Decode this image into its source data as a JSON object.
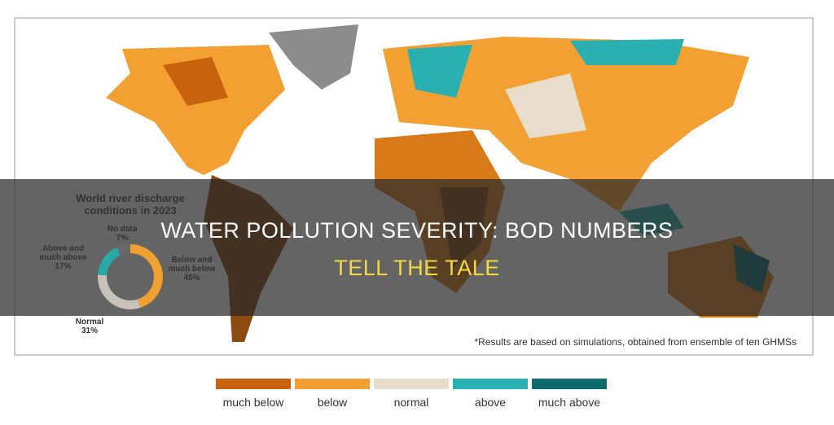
{
  "banner": {
    "line1": "WATER POLLUTION SEVERITY: BOD NUMBERS",
    "line2": "TELL THE TALE"
  },
  "footnote": "*Results are based on simulations, obtained from ensemble of ten GHMSs",
  "legend": {
    "items": [
      {
        "label": "much below",
        "color": "#c8620c"
      },
      {
        "label": "below",
        "color": "#f2a032"
      },
      {
        "label": "normal",
        "color": "#e8dccb"
      },
      {
        "label": "above",
        "color": "#2ab0b0"
      },
      {
        "label": "much above",
        "color": "#0d6b6b"
      }
    ]
  },
  "chart_data": {
    "type": "pie",
    "title": "World river discharge conditions in 2023",
    "categories": [
      "Below and much below",
      "Normal",
      "Above and much above",
      "No data"
    ],
    "values": [
      45,
      31,
      17,
      7
    ],
    "value_labels": [
      "45%",
      "31%",
      "17%",
      "7%"
    ],
    "colors": [
      "#f0a030",
      "#c9c2b8",
      "#2aa8a8",
      "#6a6a6a"
    ],
    "donut": true
  }
}
